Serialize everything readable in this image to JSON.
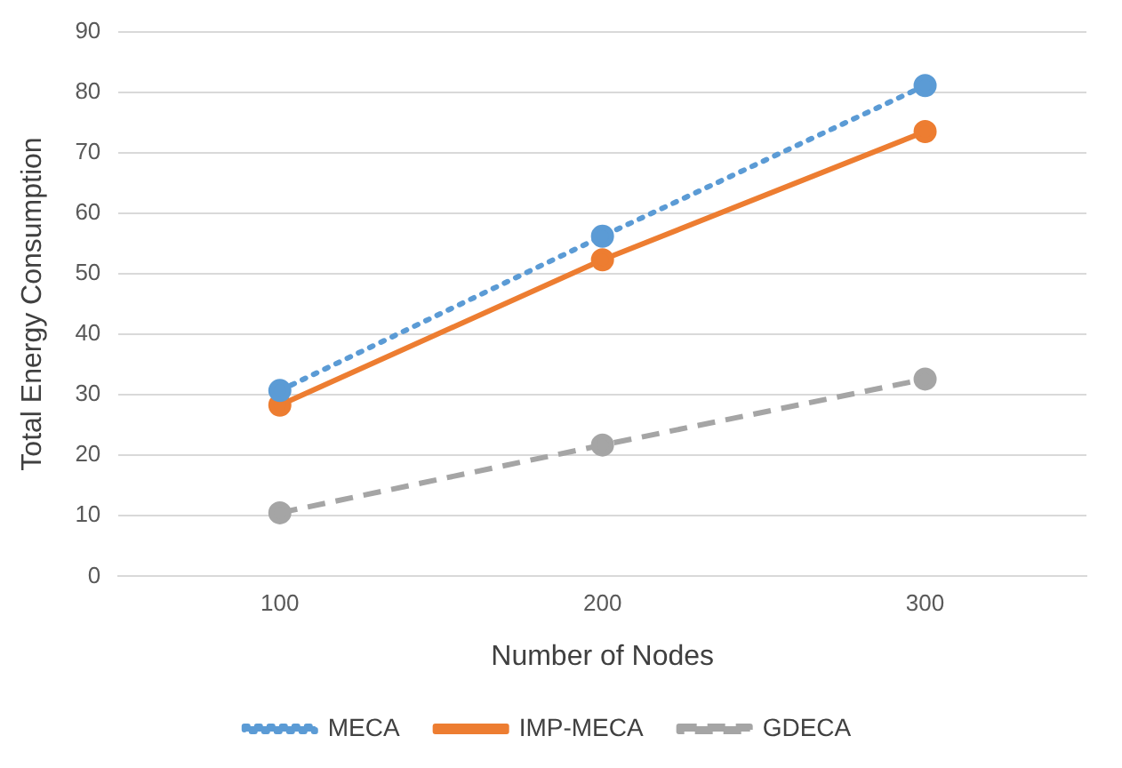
{
  "chart_data": {
    "type": "line",
    "xlabel": "Number of Nodes",
    "ylabel": "Total Energy Consumption",
    "categories": [
      "100",
      "200",
      "300"
    ],
    "series": [
      {
        "name": "MECA",
        "color": "#5b9bd5",
        "line_style": "dotted",
        "values": [
          30.7,
          56.2,
          81.1
        ]
      },
      {
        "name": "IMP-MECA",
        "color": "#ed7d31",
        "line_style": "solid",
        "values": [
          28.3,
          52.3,
          73.5
        ]
      },
      {
        "name": "GDECA",
        "color": "#a5a5a5",
        "line_style": "dashed",
        "values": [
          10.5,
          21.7,
          32.6
        ]
      }
    ],
    "ylim": [
      0,
      90
    ],
    "yticks": [
      0,
      10,
      20,
      30,
      40,
      50,
      60,
      70,
      80,
      90
    ],
    "grid": "y",
    "legend": "bottom",
    "marker": "circle"
  }
}
